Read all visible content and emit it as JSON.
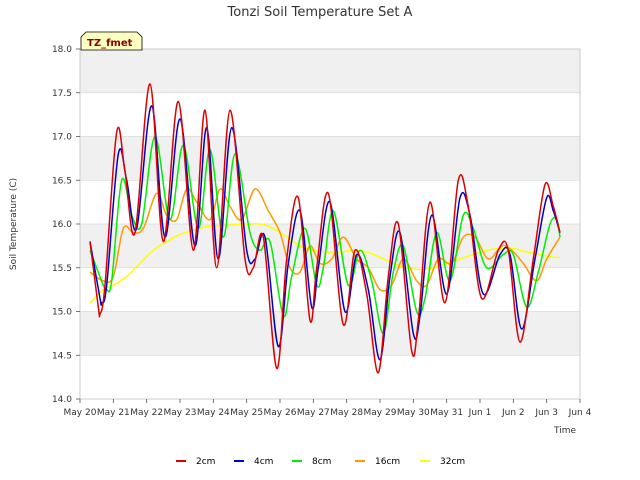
{
  "chart_data": {
    "type": "line",
    "title": "Tonzi Soil Temperature Set A",
    "xlabel": "Time",
    "ylabel": "Soil Temperature (C)",
    "ylim": [
      14.0,
      18.0
    ],
    "xlim": [
      0,
      15
    ],
    "yticks": [
      14.0,
      14.5,
      15.0,
      15.5,
      16.0,
      16.5,
      17.0,
      17.5,
      18.0
    ],
    "ytick_labels": [
      "14.0",
      "14.5",
      "15.0",
      "15.5",
      "16.0",
      "16.5",
      "17.0",
      "17.5",
      "18.0"
    ],
    "xticks": [
      0,
      1,
      2,
      3,
      4,
      5,
      6,
      7,
      8,
      9,
      10,
      11,
      12,
      13,
      14,
      15
    ],
    "xtick_labels": [
      "May 20",
      "May 21",
      "May 22",
      "May 23",
      "May 24",
      "May 25",
      "May 26",
      "May 27",
      "May 28",
      "May 29",
      "May 30",
      "May 31",
      "Jun 1",
      "Jun 2",
      "Jun 3",
      "Jun 4"
    ],
    "grid": true,
    "legend_position": "bottom",
    "annotation": "TZ_fmet",
    "colors": {
      "band": "#f0f0f0",
      "grid": "#d9d9d9",
      "annotation_bg": "#ffffc0",
      "annotation_text": "#8b0000"
    },
    "series": [
      {
        "name": "2cm",
        "color": "#dd0000",
        "x": [
          0.3,
          0.55,
          0.6,
          0.75,
          1.1,
          1.35,
          1.65,
          2.1,
          2.5,
          2.95,
          3.4,
          3.75,
          4.1,
          4.5,
          4.95,
          5.2,
          5.5,
          5.9,
          6.2,
          6.55,
          6.9,
          7.1,
          7.45,
          7.9,
          8.25,
          8.6,
          8.95,
          9.25,
          9.55,
          9.95,
          10.15,
          10.5,
          10.95,
          11.35,
          11.65,
          12.05,
          12.55,
          12.85,
          13.2,
          13.6,
          13.95,
          14.2,
          14.4
        ],
        "y": [
          15.8,
          15.05,
          14.97,
          15.3,
          17.05,
          16.6,
          15.9,
          17.6,
          15.8,
          17.4,
          15.7,
          17.3,
          15.5,
          17.3,
          15.6,
          15.5,
          15.85,
          14.35,
          15.6,
          16.3,
          14.9,
          15.5,
          16.35,
          14.85,
          15.7,
          15.2,
          14.3,
          15.4,
          16.0,
          14.55,
          14.9,
          16.25,
          15.1,
          16.5,
          16.2,
          15.15,
          15.7,
          15.7,
          14.65,
          15.6,
          16.45,
          16.2,
          15.9
        ]
      },
      {
        "name": "4cm",
        "color": "#0000cc",
        "x": [
          0.3,
          0.6,
          0.65,
          0.8,
          1.15,
          1.4,
          1.7,
          2.15,
          2.55,
          3.0,
          3.45,
          3.8,
          4.15,
          4.55,
          5.0,
          5.25,
          5.55,
          5.95,
          6.25,
          6.6,
          6.95,
          7.15,
          7.5,
          7.95,
          8.3,
          8.65,
          9.0,
          9.3,
          9.6,
          10.0,
          10.2,
          10.55,
          11.0,
          11.4,
          11.7,
          12.1,
          12.6,
          12.9,
          13.25,
          13.65,
          14.0,
          14.2,
          14.4
        ],
        "y": [
          15.8,
          15.15,
          15.1,
          15.3,
          16.8,
          16.5,
          15.95,
          17.35,
          15.85,
          17.2,
          15.75,
          17.1,
          15.6,
          17.1,
          15.7,
          15.6,
          15.85,
          14.6,
          15.55,
          16.15,
          15.05,
          15.5,
          16.25,
          15.0,
          15.65,
          15.25,
          14.45,
          15.4,
          15.9,
          14.75,
          14.95,
          16.1,
          15.2,
          16.3,
          16.1,
          15.2,
          15.65,
          15.65,
          14.8,
          15.6,
          16.3,
          16.15,
          15.9
        ]
      },
      {
        "name": "8cm",
        "color": "#00ee00",
        "x": [
          0.3,
          0.7,
          0.8,
          0.95,
          1.25,
          1.55,
          1.85,
          2.25,
          2.7,
          3.1,
          3.55,
          3.9,
          4.3,
          4.65,
          5.1,
          5.4,
          5.7,
          6.1,
          6.35,
          6.75,
          7.1,
          7.3,
          7.6,
          8.05,
          8.4,
          8.75,
          9.1,
          9.4,
          9.7,
          10.1,
          10.35,
          10.7,
          11.1,
          11.5,
          11.8,
          12.2,
          12.7,
          13.0,
          13.4,
          13.75,
          14.1,
          14.3,
          14.4
        ],
        "y": [
          15.7,
          15.3,
          15.25,
          15.35,
          16.5,
          16.1,
          16.0,
          17.0,
          16.05,
          16.9,
          15.95,
          16.85,
          15.85,
          16.8,
          15.9,
          15.7,
          15.8,
          14.95,
          15.4,
          15.95,
          15.3,
          15.5,
          16.15,
          15.3,
          15.7,
          15.35,
          14.75,
          15.45,
          15.75,
          15.0,
          15.15,
          15.9,
          15.35,
          16.1,
          15.95,
          15.5,
          15.65,
          15.65,
          15.05,
          15.45,
          16.0,
          16.05,
          15.85
        ]
      },
      {
        "name": "16cm",
        "color": "#ff9900",
        "x": [
          0.3,
          0.7,
          1.0,
          1.3,
          1.6,
          1.9,
          2.3,
          2.6,
          2.9,
          3.2,
          3.5,
          3.9,
          4.2,
          4.5,
          4.85,
          5.25,
          5.65,
          6.0,
          6.3,
          6.6,
          6.9,
          7.2,
          7.55,
          7.9,
          8.3,
          8.65,
          9.0,
          9.35,
          9.7,
          10.1,
          10.4,
          10.75,
          11.15,
          11.5,
          11.85,
          12.25,
          12.65,
          12.95,
          13.3,
          13.7,
          14.0,
          14.4
        ],
        "y": [
          15.45,
          15.35,
          15.4,
          15.95,
          15.9,
          15.95,
          16.35,
          16.1,
          16.05,
          16.4,
          16.25,
          16.05,
          16.4,
          16.2,
          16.05,
          16.4,
          16.15,
          15.9,
          15.5,
          15.45,
          15.75,
          15.55,
          15.6,
          15.85,
          15.6,
          15.5,
          15.25,
          15.3,
          15.6,
          15.35,
          15.3,
          15.6,
          15.55,
          15.85,
          15.85,
          15.6,
          15.75,
          15.7,
          15.55,
          15.35,
          15.6,
          15.85
        ]
      },
      {
        "name": "32cm",
        "color": "#ffff00",
        "x": [
          0.3,
          0.7,
          1.0,
          1.4,
          1.8,
          2.2,
          2.6,
          3.0,
          3.4,
          3.8,
          4.2,
          4.6,
          5.0,
          5.4,
          5.8,
          6.2,
          6.6,
          7.0,
          7.4,
          7.8,
          8.2,
          8.6,
          9.0,
          9.4,
          9.8,
          10.2,
          10.6,
          11.0,
          11.4,
          11.8,
          12.2,
          12.6,
          13.0,
          13.4,
          13.8,
          14.2,
          14.4
        ],
        "y": [
          15.1,
          15.25,
          15.3,
          15.4,
          15.55,
          15.7,
          15.8,
          15.88,
          15.93,
          15.97,
          15.98,
          15.99,
          16.0,
          16.0,
          15.95,
          15.85,
          15.75,
          15.7,
          15.68,
          15.68,
          15.7,
          15.68,
          15.62,
          15.55,
          15.5,
          15.48,
          15.5,
          15.55,
          15.6,
          15.65,
          15.7,
          15.72,
          15.72,
          15.68,
          15.65,
          15.62,
          15.62
        ]
      }
    ]
  }
}
